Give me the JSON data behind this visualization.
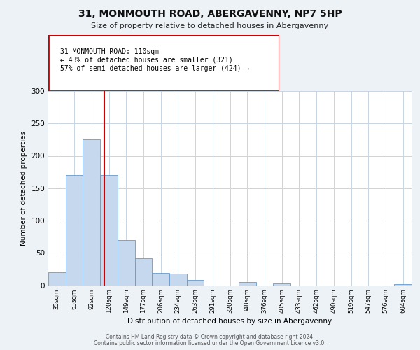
{
  "title": "31, MONMOUTH ROAD, ABERGAVENNY, NP7 5HP",
  "subtitle": "Size of property relative to detached houses in Abergavenny",
  "xlabel": "Distribution of detached houses by size in Abergavenny",
  "ylabel": "Number of detached properties",
  "bar_color": "#c5d8ed",
  "bar_edge_color": "#6699cc",
  "bin_labels": [
    "35sqm",
    "63sqm",
    "92sqm",
    "120sqm",
    "149sqm",
    "177sqm",
    "206sqm",
    "234sqm",
    "263sqm",
    "291sqm",
    "320sqm",
    "348sqm",
    "376sqm",
    "405sqm",
    "433sqm",
    "462sqm",
    "490sqm",
    "519sqm",
    "547sqm",
    "576sqm",
    "604sqm"
  ],
  "bar_heights": [
    20,
    170,
    225,
    170,
    70,
    42,
    19,
    18,
    8,
    0,
    0,
    5,
    0,
    3,
    0,
    0,
    0,
    0,
    0,
    0,
    2
  ],
  "ylim": [
    0,
    300
  ],
  "yticks": [
    0,
    50,
    100,
    150,
    200,
    250,
    300
  ],
  "vline_color": "#cc0000",
  "vline_x": 2.72,
  "annotation_title": "31 MONMOUTH ROAD: 110sqm",
  "annotation_line1": "← 43% of detached houses are smaller (321)",
  "annotation_line2": "57% of semi-detached houses are larger (424) →",
  "footer1": "Contains HM Land Registry data © Crown copyright and database right 2024.",
  "footer2": "Contains public sector information licensed under the Open Government Licence v3.0.",
  "background_color": "#edf2f7",
  "plot_bg_color": "#ffffff",
  "grid_color": "#c8d4e0"
}
